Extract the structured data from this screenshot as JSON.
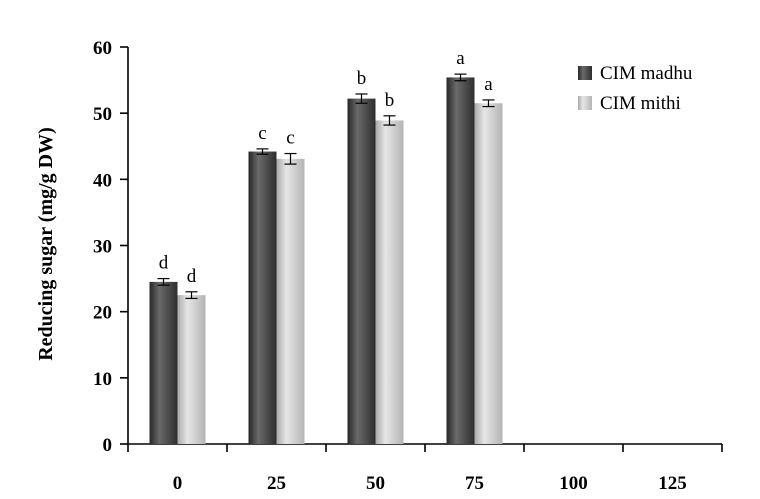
{
  "chart_data": {
    "type": "bar",
    "title": "",
    "xlabel": "",
    "ylabel": "Reducing sugar (mg/g DW)",
    "ylim": [
      0,
      60
    ],
    "yticks": [
      0,
      10,
      20,
      30,
      40,
      50,
      60
    ],
    "categories": [
      "0",
      "25",
      "50",
      "75",
      "100",
      "125"
    ],
    "series": [
      {
        "name": "CIM madhu",
        "color": "#3a3a3a",
        "values": [
          24.5,
          44.2,
          52.2,
          55.4,
          null,
          null
        ],
        "errors": [
          0.5,
          0.4,
          0.7,
          0.5,
          null,
          null
        ],
        "letters": [
          "d",
          "c",
          "b",
          "a",
          "",
          ""
        ]
      },
      {
        "name": "CIM mithi",
        "color": "#c2c2c2",
        "values": [
          22.5,
          43.1,
          48.9,
          51.5,
          null,
          null
        ],
        "errors": [
          0.5,
          0.8,
          0.7,
          0.5,
          null,
          null
        ],
        "letters": [
          "d",
          "c",
          "b",
          "a",
          "",
          ""
        ]
      }
    ],
    "grid": false,
    "legend_position": "top-right"
  }
}
